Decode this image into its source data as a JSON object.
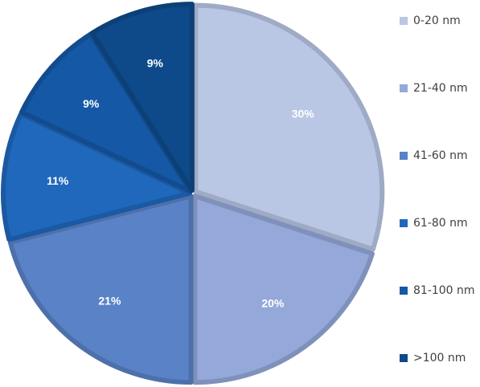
{
  "chart_data": {
    "type": "pie",
    "title": "",
    "slices": [
      {
        "label": "0-20 nm",
        "value": 30,
        "value_label": "30%",
        "color": "#b9c6e4"
      },
      {
        "label": "21-40 nm",
        "value": 20,
        "value_label": "20%",
        "color": "#94a9d9"
      },
      {
        "label": "41-60 nm",
        "value": 21,
        "value_label": "21%",
        "color": "#5a82c7"
      },
      {
        "label": "61-80 nm",
        "value": 11,
        "value_label": "11%",
        "color": "#1f68bc"
      },
      {
        "label": "81-100 nm",
        "value": 9,
        "value_label": "9%",
        "color": "#1558a6"
      },
      {
        "label": ">100 nm",
        "value": 9,
        "value_label": "9%",
        "color": "#0e4a8a"
      }
    ],
    "legend_position": "right",
    "start_angle": "12 o'clock",
    "direction": "clockwise"
  }
}
